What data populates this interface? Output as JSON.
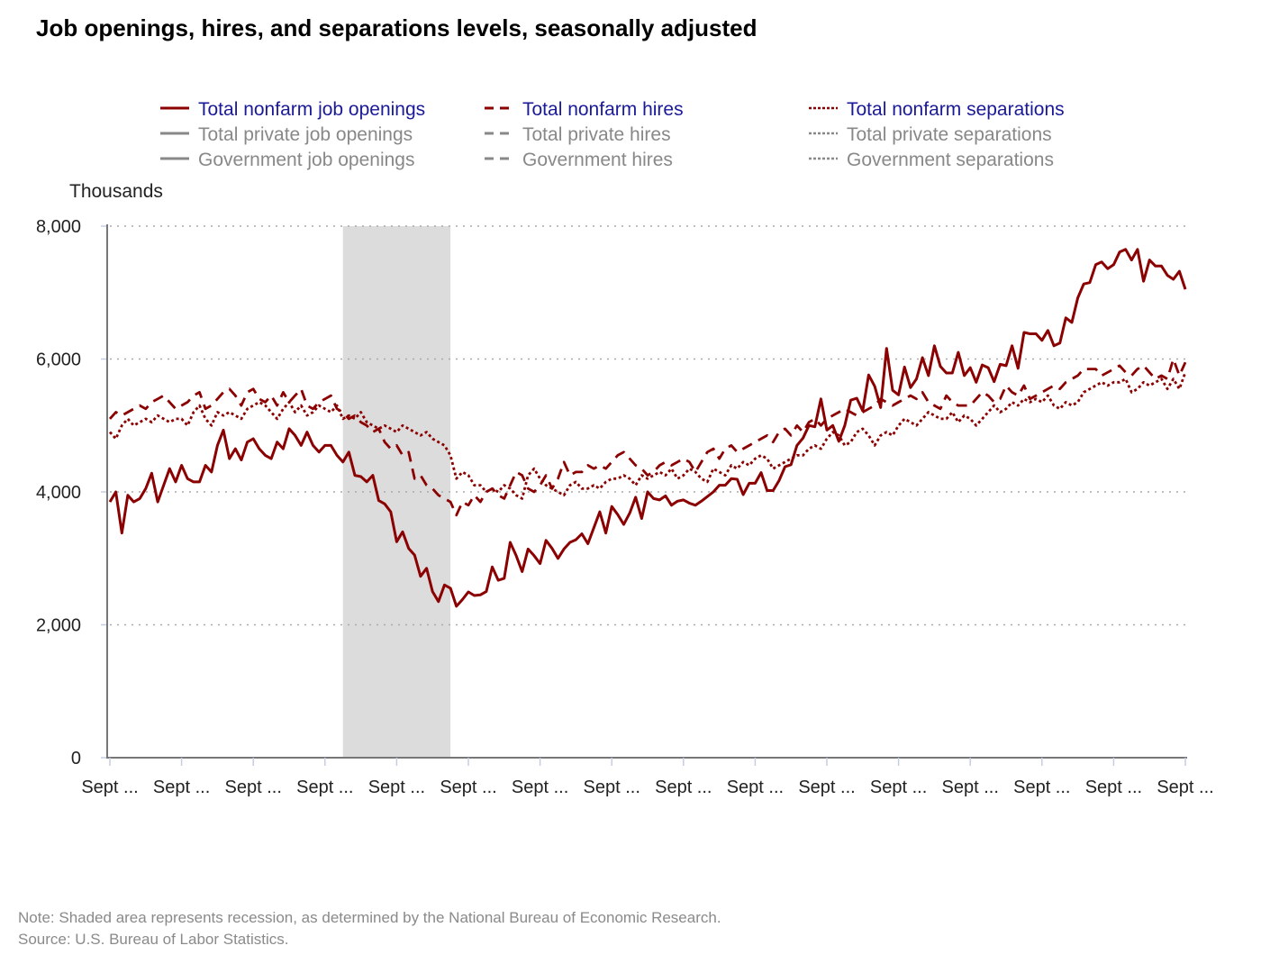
{
  "chart_data": {
    "type": "line",
    "title": "Job openings, hires, and separations levels, seasonally adjusted",
    "ylabel": "Thousands",
    "xlabel": "",
    "ylim": [
      0,
      8000
    ],
    "yticks": [
      0,
      2000,
      4000,
      6000,
      8000
    ],
    "ytick_labels": [
      "0",
      "2,000",
      "4,000",
      "6,000",
      "8,000"
    ],
    "x_start": "2004-09",
    "x_end": "2019-09",
    "frequency": "monthly",
    "xtick_labels": [
      "Sept ...",
      "Sept ...",
      "Sept ...",
      "Sept ...",
      "Sept ...",
      "Sept ...",
      "Sept ...",
      "Sept ...",
      "Sept ...",
      "Sept ...",
      "Sept ...",
      "Sept ...",
      "Sept ...",
      "Sept ...",
      "Sept ...",
      "Sept ..."
    ],
    "grid": "horizontal dotted",
    "legend_position": "top",
    "recession_shading": {
      "start": "2007-12",
      "end": "2009-06",
      "color": "#dcdcdc"
    },
    "legend": [
      {
        "name": "Total nonfarm job openings",
        "style": "solid",
        "active": true
      },
      {
        "name": "Total nonfarm hires",
        "style": "dashed",
        "active": true
      },
      {
        "name": "Total nonfarm separations",
        "style": "dotted",
        "active": true
      },
      {
        "name": "Total private job openings",
        "style": "solid",
        "active": false
      },
      {
        "name": "Total private hires",
        "style": "dashed",
        "active": false
      },
      {
        "name": "Total private separations",
        "style": "dotted",
        "active": false
      },
      {
        "name": "Government job openings",
        "style": "solid",
        "active": false
      },
      {
        "name": "Government hires",
        "style": "dashed",
        "active": false
      },
      {
        "name": "Government separations",
        "style": "dotted",
        "active": false
      }
    ],
    "colors": {
      "series": "#8b0000",
      "active_legend_text": "#1a1a99",
      "inactive": "#888888"
    },
    "series": [
      {
        "name": "Total nonfarm job openings",
        "style": "solid",
        "values": [
          3850,
          4000,
          3380,
          3950,
          3850,
          3900,
          4050,
          4280,
          3850,
          4100,
          4350,
          4150,
          4400,
          4200,
          4150,
          4150,
          4400,
          4300,
          4700,
          4930,
          4500,
          4650,
          4480,
          4750,
          4800,
          4650,
          4550,
          4500,
          4750,
          4650,
          4950,
          4850,
          4700,
          4900,
          4700,
          4600,
          4700,
          4700,
          4550,
          4450,
          4600,
          4250,
          4230,
          4150,
          4250,
          3870,
          3820,
          3700,
          3250,
          3400,
          3150,
          3050,
          2730,
          2850,
          2500,
          2350,
          2600,
          2550,
          2280,
          2380,
          2495,
          2440,
          2450,
          2500,
          2870,
          2670,
          2700,
          3240,
          3040,
          2800,
          3140,
          3040,
          2920,
          3270,
          3150,
          3000,
          3140,
          3240,
          3280,
          3370,
          3220,
          3460,
          3700,
          3380,
          3780,
          3660,
          3510,
          3680,
          3920,
          3600,
          4000,
          3900,
          3880,
          3940,
          3800,
          3860,
          3880,
          3830,
          3800,
          3860,
          3930,
          4000,
          4100,
          4100,
          4200,
          4190,
          3960,
          4130,
          4130,
          4290,
          4020,
          4020,
          4170,
          4380,
          4410,
          4700,
          4810,
          5000,
          4980,
          5400,
          4930,
          5000,
          4760,
          5000,
          5380,
          5410,
          5220,
          5760,
          5590,
          5270,
          6160,
          5530,
          5460,
          5880,
          5570,
          5700,
          6020,
          5750,
          6200,
          5890,
          5790,
          5790,
          6100,
          5750,
          5870,
          5650,
          5910,
          5870,
          5660,
          5920,
          5900,
          6200,
          5860,
          6400,
          6380,
          6380,
          6280,
          6430,
          6200,
          6240,
          6620,
          6550,
          6920,
          7130,
          7150,
          7420,
          7460,
          7360,
          7420,
          7610,
          7650,
          7490,
          7650,
          7170,
          7490,
          7400,
          7400,
          7260,
          7200,
          7320,
          7050
        ]
      },
      {
        "name": "Total nonfarm hires",
        "style": "dashed",
        "values": [
          5100,
          5200,
          5150,
          5200,
          5250,
          5300,
          5250,
          5350,
          5400,
          5450,
          5350,
          5250,
          5300,
          5350,
          5450,
          5500,
          5250,
          5300,
          5400,
          5500,
          5550,
          5450,
          5300,
          5500,
          5550,
          5400,
          5350,
          5450,
          5300,
          5500,
          5350,
          5450,
          5550,
          5300,
          5250,
          5350,
          5400,
          5450,
          5250,
          5200,
          5100,
          5150,
          5050,
          5000,
          4900,
          4950,
          4750,
          4650,
          4700,
          4550,
          4600,
          4200,
          4250,
          4100,
          4050,
          3950,
          3900,
          3850,
          3650,
          3850,
          3800,
          3950,
          3850,
          4000,
          4050,
          3950,
          3900,
          4100,
          4300,
          4250,
          4050,
          4000,
          4100,
          4250,
          4050,
          4200,
          4450,
          4250,
          4300,
          4300,
          4400,
          4350,
          4400,
          4350,
          4450,
          4550,
          4600,
          4500,
          4400,
          4350,
          4250,
          4300,
          4400,
          4450,
          4400,
          4450,
          4500,
          4450,
          4300,
          4450,
          4600,
          4650,
          4500,
          4650,
          4700,
          4600,
          4650,
          4700,
          4750,
          4800,
          4850,
          4750,
          4900,
          4950,
          4850,
          5000,
          4900,
          5050,
          5100,
          5000,
          5100,
          5150,
          5200,
          5250,
          5200,
          5150,
          5200,
          5250,
          5300,
          5400,
          5350,
          5300,
          5350,
          5400,
          5450,
          5400,
          5500,
          5350,
          5300,
          5250,
          5450,
          5350,
          5300,
          5300,
          5300,
          5400,
          5500,
          5450,
          5350,
          5400,
          5600,
          5500,
          5450,
          5600,
          5400,
          5450,
          5500,
          5550,
          5600,
          5550,
          5650,
          5700,
          5750,
          5850,
          5850,
          5850,
          5750,
          5800,
          5850,
          5900,
          5800,
          5750,
          5850,
          5900,
          5800,
          5700,
          5750,
          5700,
          6000,
          5750,
          5950
        ]
      },
      {
        "name": "Total nonfarm separations",
        "style": "dotted",
        "values": [
          4900,
          4800,
          5000,
          5100,
          5000,
          5050,
          5100,
          5050,
          5150,
          5100,
          5050,
          5100,
          5100,
          5000,
          5200,
          5300,
          5100,
          5000,
          5200,
          5150,
          5200,
          5150,
          5100,
          5250,
          5300,
          5350,
          5300,
          5200,
          5100,
          5250,
          5350,
          5200,
          5300,
          5150,
          5200,
          5300,
          5250,
          5200,
          5300,
          5100,
          5150,
          5100,
          5200,
          5050,
          5000,
          4950,
          5000,
          4950,
          4900,
          5000,
          4950,
          4900,
          4850,
          4900,
          4800,
          4750,
          4700,
          4550,
          4200,
          4300,
          4250,
          4100,
          4100,
          4000,
          4050,
          4000,
          4100,
          4050,
          3950,
          3900,
          4250,
          4350,
          4200,
          4100,
          4050,
          4000,
          3950,
          4100,
          4150,
          4050,
          4050,
          4100,
          4050,
          4150,
          4200,
          4200,
          4250,
          4200,
          4100,
          4250,
          4200,
          4250,
          4300,
          4250,
          4350,
          4200,
          4250,
          4350,
          4300,
          4200,
          4150,
          4350,
          4300,
          4250,
          4400,
          4350,
          4450,
          4400,
          4500,
          4550,
          4500,
          4350,
          4400,
          4450,
          4500,
          4550,
          4550,
          4650,
          4700,
          4650,
          4800,
          4900,
          4850,
          4700,
          4750,
          4900,
          4950,
          4850,
          4700,
          4850,
          4900,
          4850,
          5000,
          5100,
          5050,
          5000,
          5100,
          5200,
          5150,
          5100,
          5100,
          5200,
          5050,
          5150,
          5100,
          5000,
          5100,
          5200,
          5300,
          5200,
          5250,
          5350,
          5300,
          5400,
          5350,
          5400,
          5350,
          5450,
          5300,
          5250,
          5350,
          5300,
          5350,
          5500,
          5550,
          5600,
          5650,
          5600,
          5650,
          5650,
          5700,
          5500,
          5550,
          5650,
          5600,
          5650,
          5700,
          5550,
          5700,
          5550,
          5800
        ]
      }
    ]
  },
  "note": "Note: Shaded area represents recession, as determined by the National Bureau of Economic Research.",
  "source": "Source: U.S. Bureau of Labor Statistics."
}
